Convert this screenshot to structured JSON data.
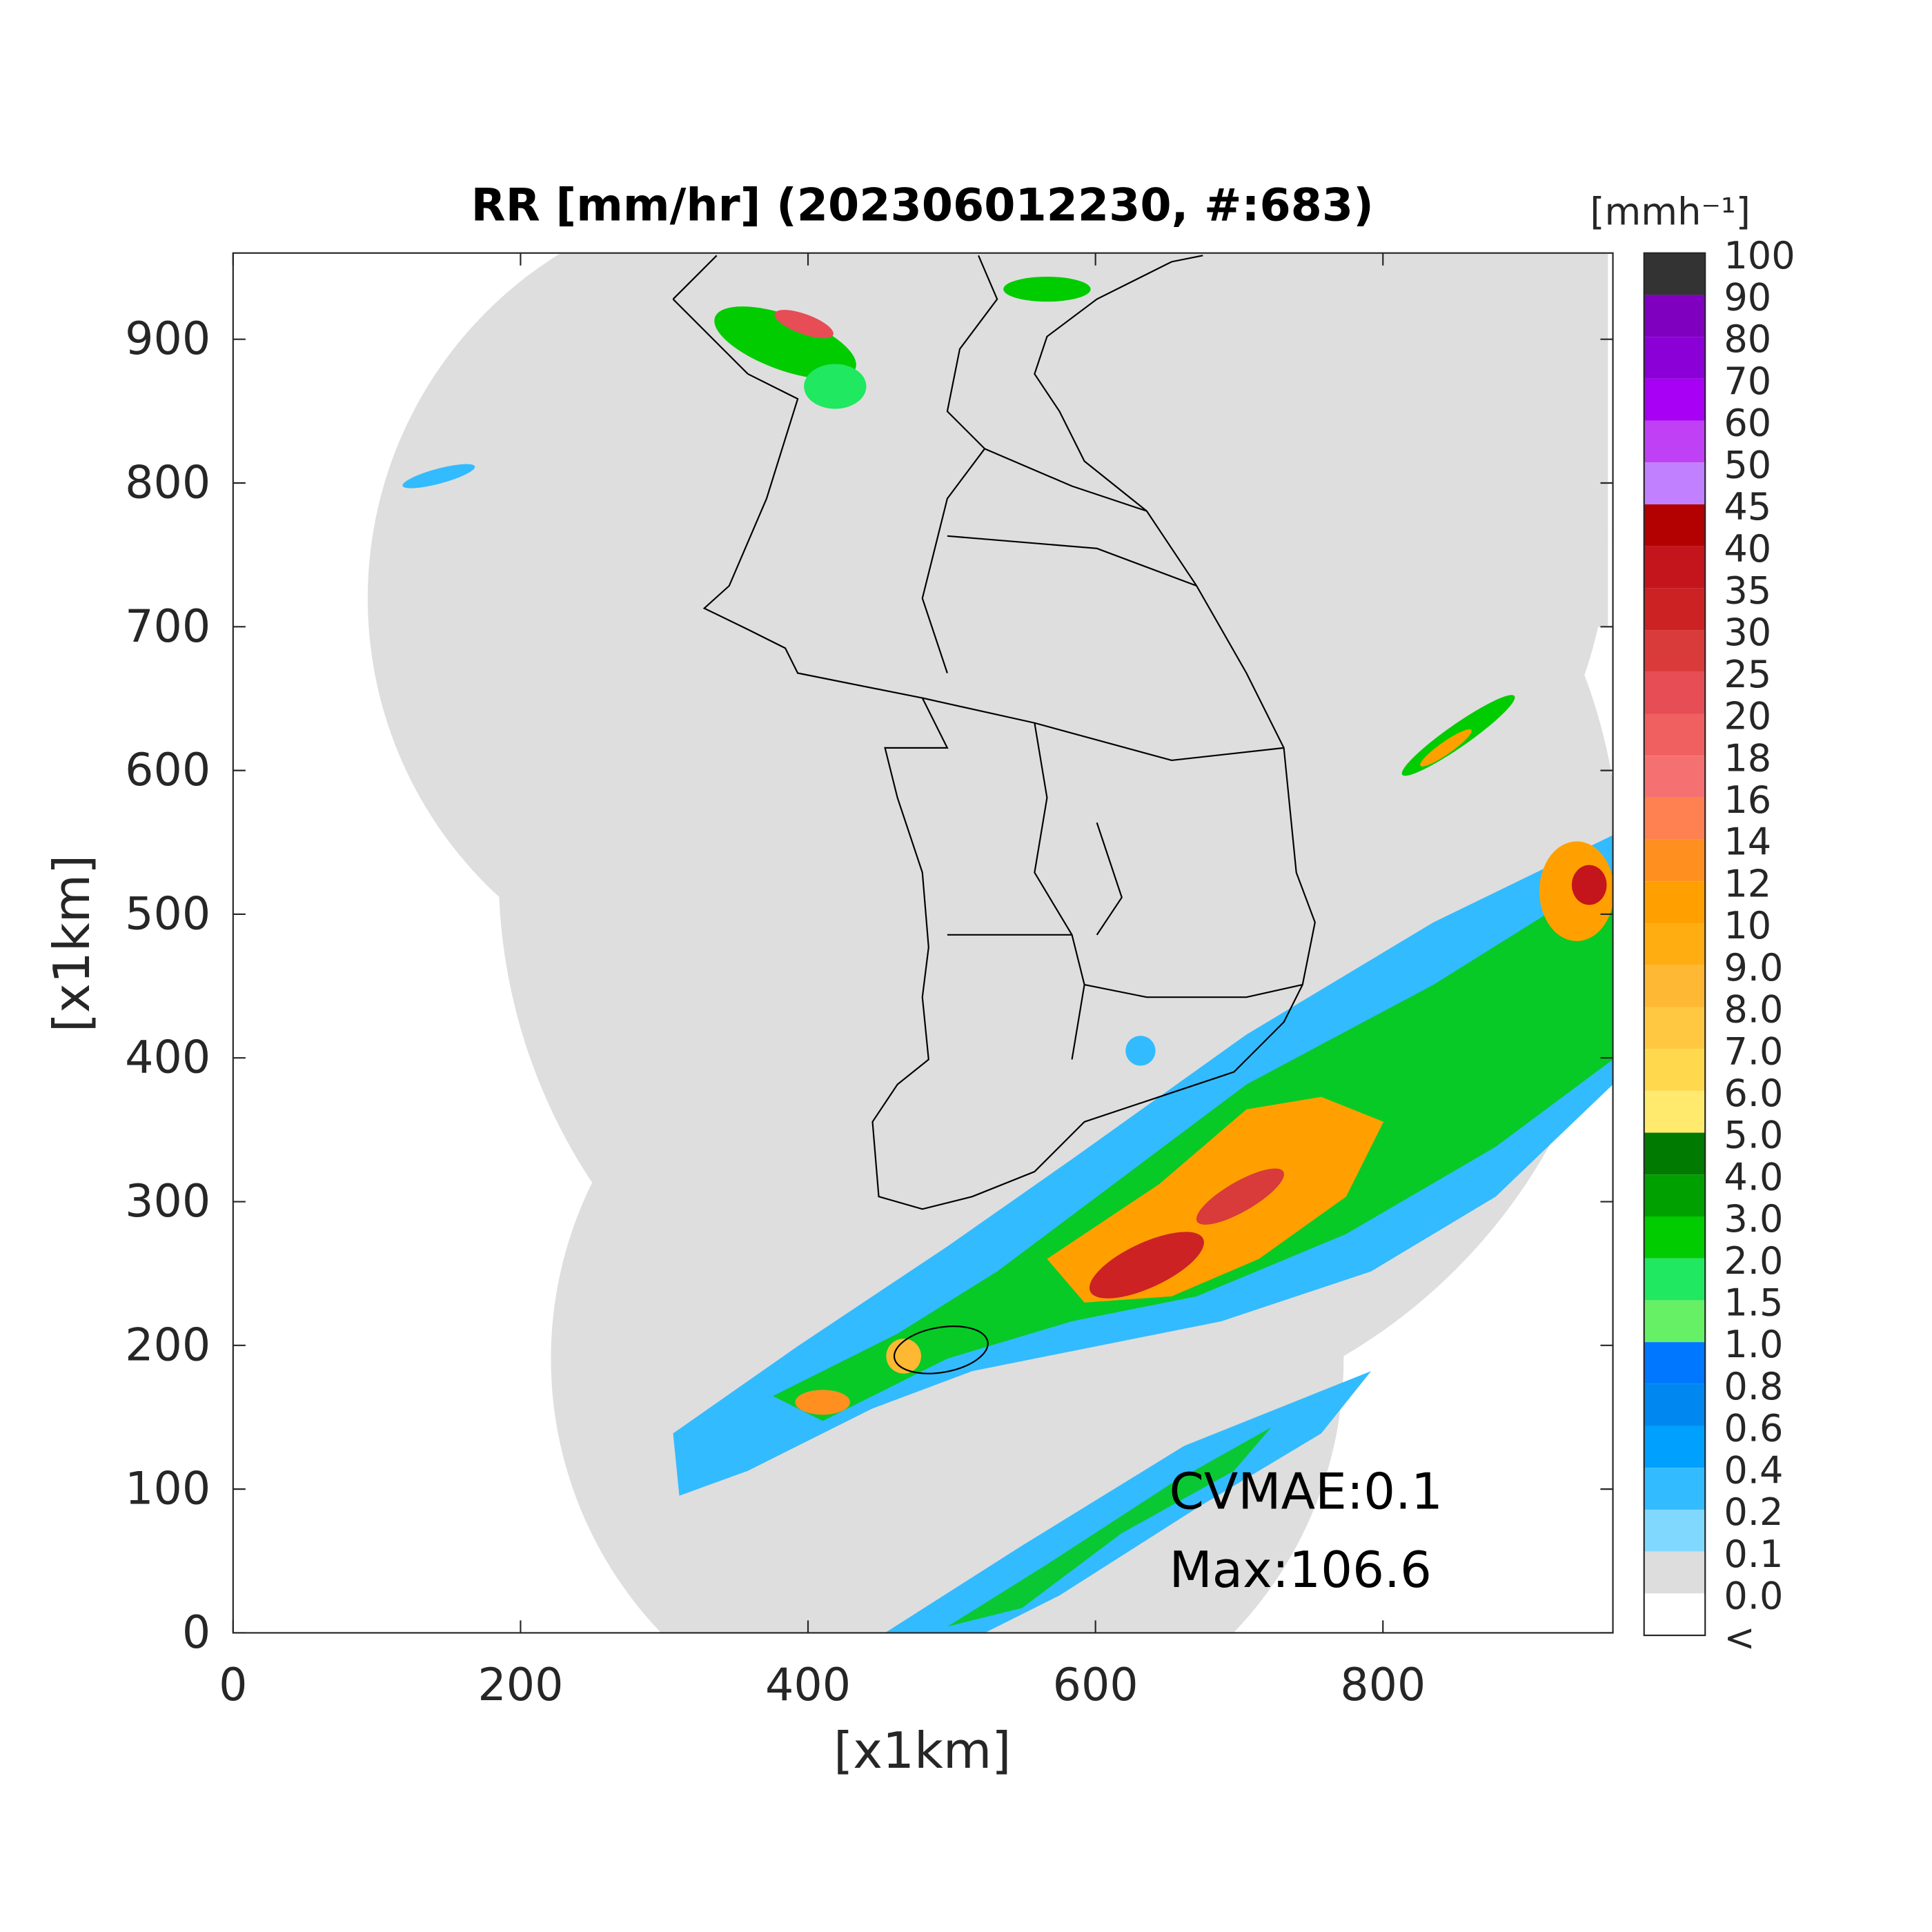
{
  "chart_data": {
    "type": "radar-map",
    "title": "RR [mm/hr] (202306012230, #:683)",
    "xlabel": "[x1km]",
    "ylabel": "[x1km]",
    "xlim": [
      0,
      960
    ],
    "ylim": [
      0,
      960
    ],
    "xticks": [
      0,
      200,
      400,
      600,
      800
    ],
    "yticks": [
      0,
      100,
      200,
      300,
      400,
      500,
      600,
      700,
      800,
      900
    ],
    "annotations": [
      "CVMAE:0.1",
      "Max:106.6"
    ],
    "colorbar": {
      "unit": "[mmh⁻¹]",
      "labels": [
        "100",
        "90",
        "80",
        "70",
        "60",
        "50",
        "45",
        "40",
        "35",
        "30",
        "25",
        "20",
        "18",
        "16",
        "14",
        "12",
        "10",
        "9.0",
        "8.0",
        "7.0",
        "6.0",
        "5.0",
        "4.0",
        "3.0",
        "2.0",
        "1.5",
        "1.0",
        "0.8",
        "0.6",
        "0.4",
        "0.2",
        "0.1",
        "0.0",
        "<"
      ],
      "colors": [
        "#333333",
        "#7f00bf",
        "#8b00d6",
        "#a800f5",
        "#c040f5",
        "#c080ff",
        "#b30000",
        "#c4151c",
        "#cc2224",
        "#d93a3a",
        "#e64d55",
        "#f06060",
        "#f57070",
        "#ff8050",
        "#ff9020",
        "#ffa000",
        "#ffad10",
        "#ffb833",
        "#ffc840",
        "#ffd84d",
        "#ffea6e",
        "#007a00",
        "#00a000",
        "#00cc00",
        "#20e860",
        "#66f066",
        "#0077ff",
        "#0088f0",
        "#00a0ff",
        "#33bbff",
        "#80d8ff",
        "#dddddd",
        "#ffffff"
      ]
    }
  }
}
